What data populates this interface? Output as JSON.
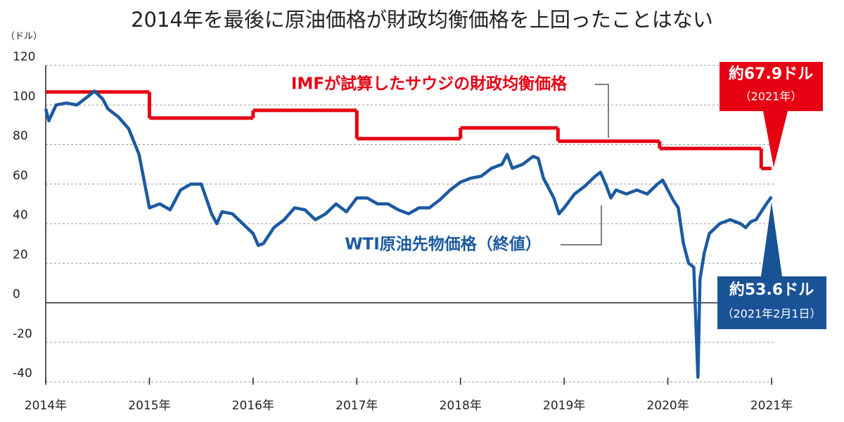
{
  "chart_data": {
    "type": "line",
    "title": "2014年を最後に原油価格が財政均衡価格を上回ったことはない",
    "y_unit": "（ドル）",
    "xlim": [
      2014,
      2021
    ],
    "xticks": [
      {
        "value": 2014,
        "label": "2014年"
      },
      {
        "value": 2015,
        "label": "2015年"
      },
      {
        "value": 2016,
        "label": "2016年"
      },
      {
        "value": 2017,
        "label": "2017年"
      },
      {
        "value": 2018,
        "label": "2018年"
      },
      {
        "value": 2019,
        "label": "2019年"
      },
      {
        "value": 2020,
        "label": "2020年"
      },
      {
        "value": 2021,
        "label": "2021年"
      }
    ],
    "ylim": [
      -40,
      120
    ],
    "yticks": [
      -40,
      -20,
      0,
      20,
      40,
      60,
      80,
      100,
      120
    ],
    "grid": true,
    "series": [
      {
        "name": "IMFが試算したサウジの財政均衡価格",
        "color": "#e60012",
        "drawstyle": "steps-post",
        "x": [
          2014,
          2015,
          2016,
          2017,
          2018,
          2018.94,
          2019.92,
          2020.9
        ],
        "values": [
          106.6,
          93.4,
          97.3,
          83,
          88.4,
          81.7,
          78,
          67.9
        ]
      },
      {
        "name": "WTI原油先物価格（終値）",
        "color": "#1b5aa0",
        "x": [
          2014.0,
          2014.03,
          2014.1,
          2014.2,
          2014.3,
          2014.4,
          2014.47,
          2014.55,
          2014.6,
          2014.7,
          2014.8,
          2014.9,
          2015.0,
          2015.1,
          2015.2,
          2015.3,
          2015.4,
          2015.5,
          2015.6,
          2015.65,
          2015.7,
          2015.8,
          2015.9,
          2016.0,
          2016.05,
          2016.1,
          2016.2,
          2016.3,
          2016.4,
          2016.5,
          2016.6,
          2016.7,
          2016.8,
          2016.9,
          2017.0,
          2017.1,
          2017.2,
          2017.3,
          2017.4,
          2017.5,
          2017.6,
          2017.7,
          2017.8,
          2017.9,
          2018.0,
          2018.1,
          2018.2,
          2018.3,
          2018.4,
          2018.45,
          2018.5,
          2018.6,
          2018.7,
          2018.75,
          2018.8,
          2018.9,
          2018.95,
          2019.0,
          2019.1,
          2019.2,
          2019.3,
          2019.35,
          2019.4,
          2019.45,
          2019.5,
          2019.6,
          2019.7,
          2019.8,
          2019.9,
          2019.95,
          2020.0,
          2020.05,
          2020.1,
          2020.15,
          2020.2,
          2020.25,
          2020.29,
          2020.31,
          2020.35,
          2020.4,
          2020.5,
          2020.6,
          2020.7,
          2020.75,
          2020.8,
          2020.85,
          2020.9,
          2020.95,
          2021.0
        ],
        "values": [
          98,
          92,
          100,
          101,
          100,
          104,
          107,
          103,
          98,
          94,
          88,
          75,
          48,
          50,
          47,
          57,
          60,
          60,
          45,
          40,
          46,
          45,
          40,
          35,
          29,
          30,
          38,
          42,
          48,
          47,
          42,
          45,
          50,
          46,
          53,
          53,
          50,
          50,
          47,
          45,
          48,
          48,
          52,
          57,
          61,
          63,
          64,
          68,
          70,
          75,
          68,
          70,
          74,
          73,
          63,
          53,
          45,
          48,
          55,
          59,
          64,
          66,
          60,
          53,
          57,
          55,
          57,
          55,
          60,
          62,
          57,
          52,
          48,
          30,
          20,
          18,
          -37.6,
          12,
          25,
          35,
          40,
          42,
          40,
          38,
          41,
          42,
          46,
          50,
          53.6
        ]
      }
    ],
    "annotations": {
      "imf_value": "約67.9ドル",
      "imf_date": "（2021年）",
      "wti_value": "約53.6ドル",
      "wti_date": "（2021年2月1日）"
    }
  }
}
